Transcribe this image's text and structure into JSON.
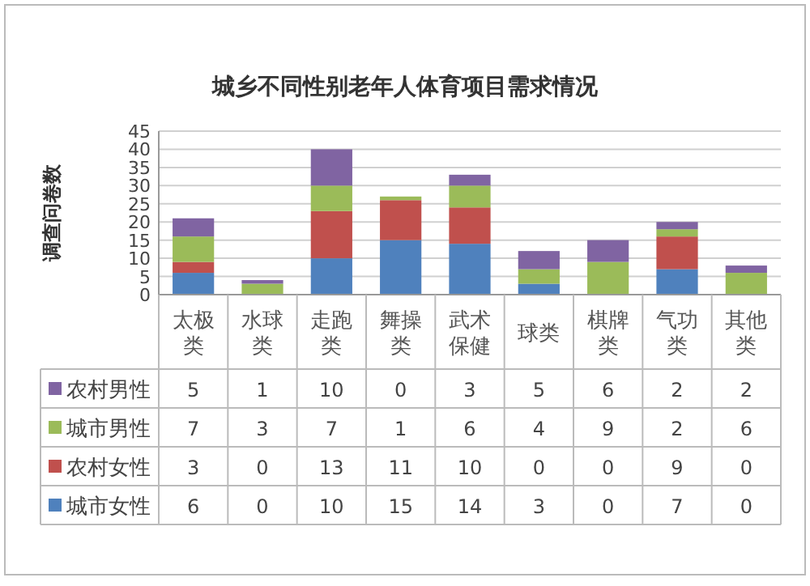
{
  "chart_data": {
    "type": "bar",
    "title": "城乡不同性别老年人体育项目需求情况",
    "ylabel": "调查问卷数",
    "stacked": true,
    "categories": [
      "太极类",
      "水球类",
      "走跑类",
      "舞操类",
      "武术保健",
      "球类",
      "棋牌类",
      "气功类",
      "其他类"
    ],
    "series": [
      {
        "name": "城市女性",
        "color": "#4f81bd",
        "values": [
          6,
          0,
          10,
          15,
          14,
          3,
          0,
          7,
          0
        ]
      },
      {
        "name": "农村女性",
        "color": "#c0504d",
        "values": [
          3,
          0,
          13,
          11,
          10,
          0,
          0,
          9,
          0
        ]
      },
      {
        "name": "城市男性",
        "color": "#9bbb59",
        "values": [
          7,
          3,
          7,
          1,
          6,
          4,
          9,
          2,
          6
        ]
      },
      {
        "name": "农村男性",
        "color": "#8064a2",
        "values": [
          5,
          1,
          10,
          0,
          3,
          5,
          6,
          2,
          2
        ]
      }
    ],
    "ylim": [
      0,
      45
    ],
    "yticks": [
      0,
      5,
      10,
      15,
      20,
      25,
      30,
      35,
      40,
      45
    ],
    "grid": "y",
    "legend": "bottom",
    "data_labels": true
  }
}
